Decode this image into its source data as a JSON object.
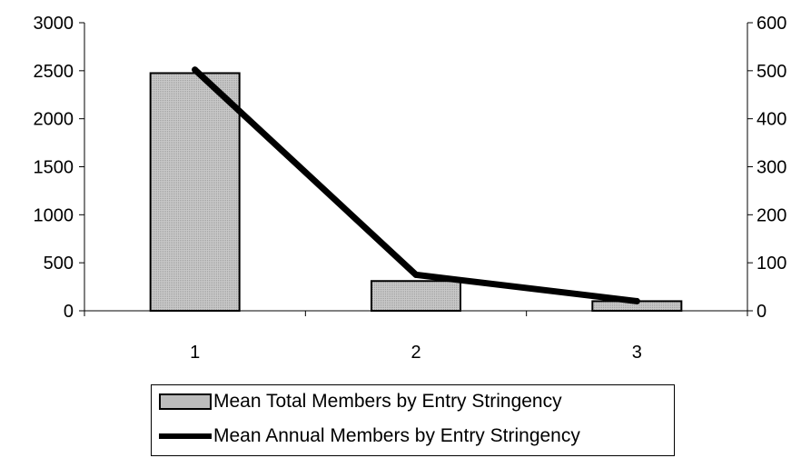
{
  "chart_data": {
    "type": "bar",
    "categories": [
      "1",
      "2",
      "3"
    ],
    "series": [
      {
        "name": "Mean Total Members by Entry Stringency",
        "type": "bar",
        "axis": "left",
        "values": [
          2475,
          310,
          100
        ],
        "color": "#c8c8c8"
      },
      {
        "name": "Mean Annual Members by Entry Stringency",
        "type": "line",
        "axis": "right",
        "values": [
          502,
          75,
          20
        ],
        "color": "#000000"
      }
    ],
    "y_left": {
      "min": 0,
      "max": 3000,
      "ticks": [
        0,
        500,
        1000,
        1500,
        2000,
        2500,
        3000
      ]
    },
    "y_right": {
      "min": 0,
      "max": 600,
      "ticks": [
        0,
        100,
        200,
        300,
        400,
        500,
        600
      ]
    },
    "title": "",
    "xlabel": "",
    "ylabel": "",
    "legend_position": "bottom",
    "grid": false
  }
}
